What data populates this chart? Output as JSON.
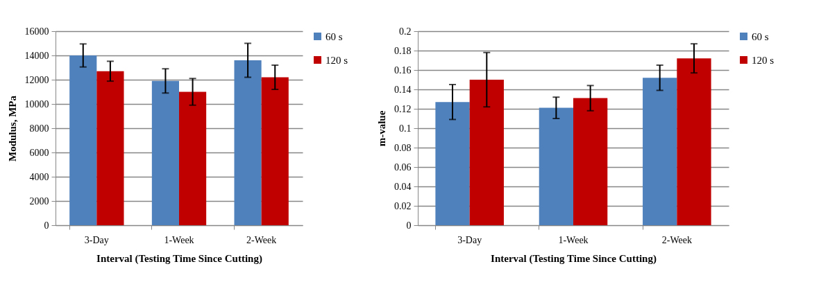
{
  "chart_data": [
    {
      "type": "bar",
      "xlabel": "Interval (Testing Time Since Cutting)",
      "ylabel": "Modulus, MPa",
      "categories": [
        "3-Day",
        "1-Week",
        "2-Week"
      ],
      "series": [
        {
          "name": "60 s",
          "color": "#4f81bd",
          "values": [
            14000,
            11900,
            13600
          ],
          "errors": [
            950,
            1000,
            1400
          ]
        },
        {
          "name": "120 s",
          "color": "#c00000",
          "values": [
            12700,
            11000,
            12200
          ],
          "errors": [
            820,
            1100,
            1000
          ]
        }
      ],
      "ylim": [
        0,
        16000
      ],
      "yticks": [
        0,
        2000,
        4000,
        6000,
        8000,
        10000,
        12000,
        14000,
        16000
      ],
      "grid": "y",
      "legend": "right"
    },
    {
      "type": "bar",
      "xlabel": "Interval (Testing Time Since Cutting)",
      "ylabel": "m-value",
      "categories": [
        "3-Day",
        "1-Week",
        "2-Week"
      ],
      "series": [
        {
          "name": "60 s",
          "color": "#4f81bd",
          "values": [
            0.127,
            0.121,
            0.152
          ],
          "errors": [
            0.018,
            0.011,
            0.013
          ]
        },
        {
          "name": "120 s",
          "color": "#c00000",
          "values": [
            0.15,
            0.131,
            0.172
          ],
          "errors": [
            0.028,
            0.013,
            0.015
          ]
        }
      ],
      "ylim": [
        0,
        0.2
      ],
      "yticks": [
        0,
        0.02,
        0.04,
        0.06,
        0.08,
        0.1,
        0.12,
        0.14,
        0.16,
        0.18,
        0.2
      ],
      "grid": "y",
      "legend": "right"
    }
  ]
}
